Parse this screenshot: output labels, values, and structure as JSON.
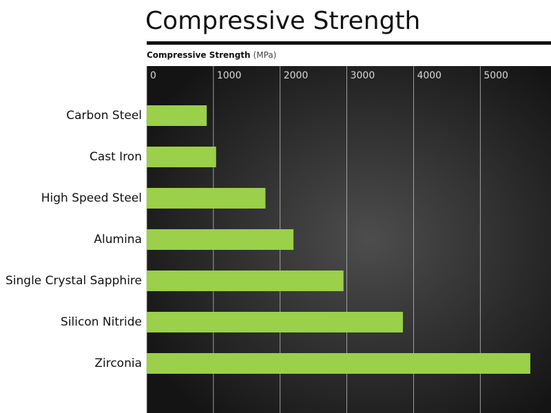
{
  "chart_data": {
    "type": "bar",
    "orientation": "horizontal",
    "title": "Compressive Strength",
    "xlabel": "Compressive Strength",
    "xlabel_unit": "(MPa)",
    "categories": [
      "Carbon Steel",
      "Cast Iron",
      "High Speed Steel",
      "Alumina",
      "Single Crystal Sapphire",
      "Silicon Nitride",
      "Zirconia"
    ],
    "values": [
      900,
      1040,
      1780,
      2200,
      2950,
      3840,
      5750
    ],
    "color": "#9ad04a",
    "xlim": [
      0,
      6060
    ],
    "xticks": [
      0,
      1000,
      2000,
      3000,
      4000,
      5000
    ],
    "grid": true
  }
}
